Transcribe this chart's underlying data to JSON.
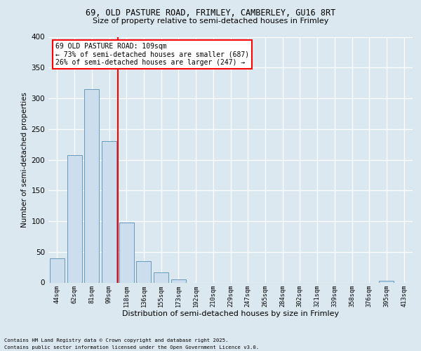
{
  "title_line1": "69, OLD PASTURE ROAD, FRIMLEY, CAMBERLEY, GU16 8RT",
  "title_line2": "Size of property relative to semi-detached houses in Frimley",
  "xlabel": "Distribution of semi-detached houses by size in Frimley",
  "ylabel": "Number of semi-detached properties",
  "categories": [
    "44sqm",
    "62sqm",
    "81sqm",
    "99sqm",
    "118sqm",
    "136sqm",
    "155sqm",
    "173sqm",
    "192sqm",
    "210sqm",
    "229sqm",
    "247sqm",
    "265sqm",
    "284sqm",
    "302sqm",
    "321sqm",
    "339sqm",
    "358sqm",
    "376sqm",
    "395sqm",
    "413sqm"
  ],
  "values": [
    40,
    207,
    315,
    230,
    98,
    35,
    17,
    5,
    0,
    0,
    0,
    0,
    0,
    0,
    0,
    0,
    0,
    0,
    0,
    3,
    0
  ],
  "bar_color": "#ccdded",
  "bar_edge_color": "#6699bb",
  "vline_x": 3.5,
  "vline_color": "red",
  "annotation_title": "69 OLD PASTURE ROAD: 109sqm",
  "annotation_line1": "← 73% of semi-detached houses are smaller (687)",
  "annotation_line2": "26% of semi-detached houses are larger (247) →",
  "footer_line1": "Contains HM Land Registry data © Crown copyright and database right 2025.",
  "footer_line2": "Contains public sector information licensed under the Open Government Licence v3.0.",
  "ylim_max": 400,
  "yticks": [
    0,
    50,
    100,
    150,
    200,
    250,
    300,
    350,
    400
  ],
  "background_color": "#dce8f0",
  "plot_background": "#dce8f0",
  "grid_color": "white"
}
